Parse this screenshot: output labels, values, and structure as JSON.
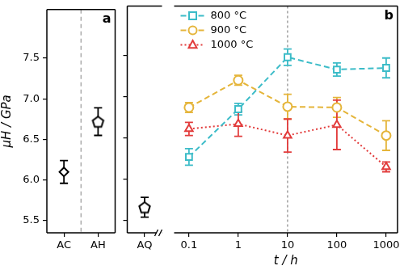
{
  "chart_data": [
    {
      "type": "scatter",
      "categories": [
        "AC",
        "AH"
      ],
      "y_label": "μH / GPa",
      "annotation": "a",
      "series": [
        {
          "color": "#000000",
          "marker": "diamond",
          "values": [
            6.1,
            null
          ],
          "errors": [
            0.14,
            null
          ]
        },
        {
          "color": "#000000",
          "marker": "pentagon",
          "values": [
            null,
            6.72
          ],
          "errors": [
            null,
            0.17
          ]
        }
      ],
      "ylim": [
        5.35,
        8.1
      ],
      "yticks": [
        5.5,
        {
          "value": 6,
          "label": "6.0"
        },
        6.5,
        {
          "value": 7,
          "label": "7.0"
        },
        7.5
      ],
      "grid": false
    },
    {
      "type": "scatter",
      "categories": [
        "AQ"
      ],
      "series": [
        {
          "color": "#000000",
          "marker": "pentagon",
          "values": [
            5.66
          ],
          "errors": [
            0.12
          ]
        }
      ],
      "ylim": [
        5.35,
        8.1
      ],
      "yticks": [
        5.5,
        {
          "value": 6,
          "label": "6.0"
        },
        6.5,
        {
          "value": 7,
          "label": "7.0"
        },
        7.5
      ],
      "tick_labels": "x",
      "grid": false
    },
    {
      "type": "line",
      "annotation": "b",
      "x_label": "t / h",
      "x": [
        0.1,
        1,
        10,
        100,
        1000
      ],
      "log": "x",
      "xlim": [
        0.05,
        1700
      ],
      "xticks": [
        0.1,
        1,
        10,
        100,
        1000
      ],
      "ylim": [
        5.35,
        8.1
      ],
      "yticks": [
        5.5,
        {
          "value": 6,
          "label": "6.0"
        },
        6.5,
        {
          "value": 7,
          "label": "7.0"
        },
        7.5
      ],
      "tick_labels": "x",
      "vline": 10,
      "legend": "top-left",
      "grid": false,
      "series": [
        {
          "name": "800 °C",
          "color": "#3cbcc8",
          "marker": "square",
          "line_style": "dashed",
          "values": [
            6.27,
            6.85,
            7.48,
            7.33,
            7.35
          ],
          "errors": [
            0.1,
            0.07,
            0.1,
            0.08,
            0.12
          ]
        },
        {
          "name": "900 °C",
          "color": "#e5b53a",
          "marker": "circle",
          "line_style": "dashed",
          "values": [
            6.87,
            7.2,
            6.88,
            6.87,
            6.53
          ],
          "errors": [
            0.06,
            0.06,
            0.15,
            0.12,
            0.18
          ]
        },
        {
          "name": "1000 °C",
          "color": "#e23c3c",
          "marker": "triangle",
          "line_style": "dotted",
          "values": [
            6.61,
            6.67,
            6.53,
            6.66,
            6.15
          ],
          "errors": [
            0.08,
            0.15,
            0.2,
            0.3,
            0.06
          ]
        }
      ]
    }
  ]
}
